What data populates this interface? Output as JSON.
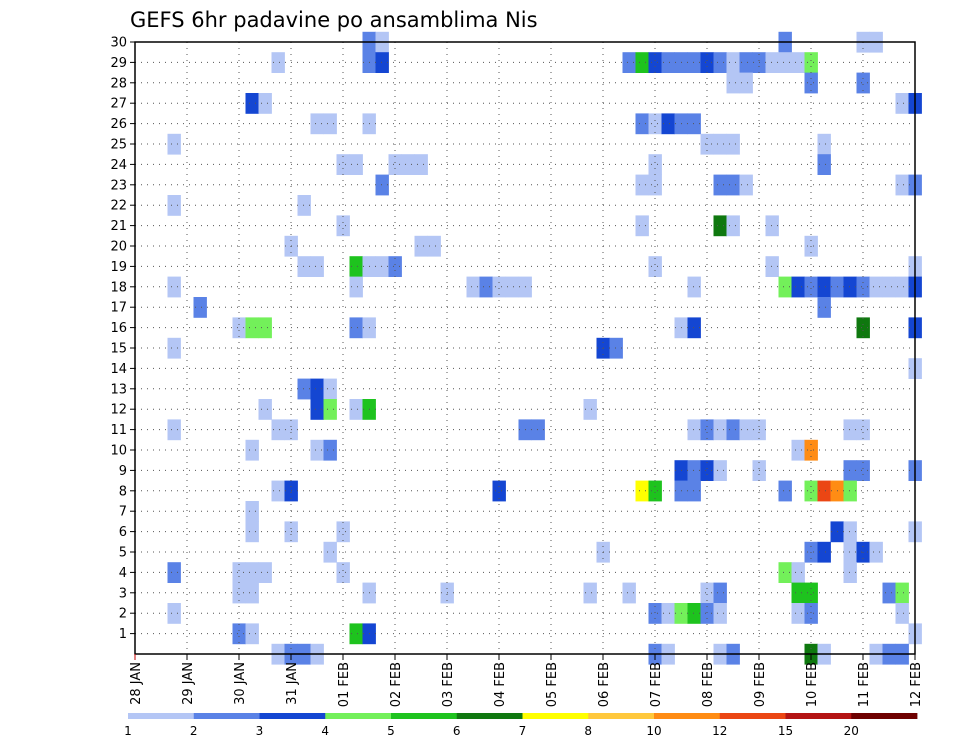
{
  "chart_data": {
    "type": "heatmap",
    "title": "GEFS 6hr padavine po ansamblima Nis",
    "xlabel": "",
    "ylabel": "",
    "x_ticks": [
      "28 JAN",
      "29 JAN",
      "30 JAN",
      "31 JAN",
      "01 FEB",
      "02 FEB",
      "03 FEB",
      "04 FEB",
      "05 FEB",
      "06 FEB",
      "07 FEB",
      "08 FEB",
      "09 FEB",
      "10 FEB",
      "11 FEB",
      "12 FEB"
    ],
    "y_ticks": [
      "1",
      "2",
      "3",
      "4",
      "5",
      "6",
      "7",
      "8",
      "9",
      "10",
      "11",
      "12",
      "13",
      "14",
      "15",
      "16",
      "17",
      "18",
      "19",
      "20",
      "21",
      "22",
      "23",
      "24",
      "25",
      "26",
      "27",
      "28",
      "29",
      "30"
    ],
    "xlim_steps": [
      0,
      60
    ],
    "ylim": [
      0,
      30
    ],
    "x_unit": "6-hour steps from 28 JAN 00Z",
    "colorbar": {
      "tick_labels": [
        "1",
        "2",
        "3",
        "4",
        "5",
        "6",
        "7",
        "8",
        "10",
        "12",
        "15",
        "20"
      ],
      "colors": [
        "#b4c6f5",
        "#5a82e6",
        "#1446d2",
        "#73f05a",
        "#1ec31e",
        "#0f780f",
        "#ffff00",
        "#ffc83c",
        "#ff8c14",
        "#eb4614",
        "#b41414",
        "#6e0000"
      ]
    },
    "cells": [
      [
        18,
        30,
        2
      ],
      [
        19,
        30,
        1
      ],
      [
        50,
        30,
        2
      ],
      [
        56,
        30,
        1
      ],
      [
        57,
        30,
        1
      ],
      [
        11,
        29,
        1
      ],
      [
        18,
        29,
        2
      ],
      [
        19,
        29,
        3
      ],
      [
        38,
        29,
        2
      ],
      [
        39,
        29,
        5
      ],
      [
        40,
        29,
        3
      ],
      [
        41,
        29,
        2
      ],
      [
        42,
        29,
        2
      ],
      [
        43,
        29,
        2
      ],
      [
        44,
        29,
        3
      ],
      [
        45,
        29,
        2
      ],
      [
        46,
        29,
        1
      ],
      [
        47,
        29,
        2
      ],
      [
        48,
        29,
        2
      ],
      [
        49,
        29,
        1
      ],
      [
        50,
        29,
        1
      ],
      [
        51,
        29,
        1
      ],
      [
        52,
        29,
        4
      ],
      [
        46,
        28,
        1
      ],
      [
        47,
        28,
        1
      ],
      [
        52,
        28,
        2
      ],
      [
        56,
        28,
        2
      ],
      [
        9,
        27,
        3
      ],
      [
        10,
        27,
        1
      ],
      [
        59,
        27,
        1
      ],
      [
        60,
        27,
        3
      ],
      [
        14,
        26,
        1
      ],
      [
        15,
        26,
        1
      ],
      [
        18,
        26,
        1
      ],
      [
        39,
        26,
        2
      ],
      [
        40,
        26,
        1
      ],
      [
        41,
        26,
        3
      ],
      [
        42,
        26,
        2
      ],
      [
        43,
        26,
        2
      ],
      [
        3,
        25,
        1
      ],
      [
        44,
        25,
        1
      ],
      [
        45,
        25,
        1
      ],
      [
        46,
        25,
        1
      ],
      [
        53,
        25,
        1
      ],
      [
        16,
        24,
        1
      ],
      [
        17,
        24,
        1
      ],
      [
        20,
        24,
        1
      ],
      [
        21,
        24,
        1
      ],
      [
        22,
        24,
        1
      ],
      [
        40,
        24,
        1
      ],
      [
        53,
        24,
        2
      ],
      [
        19,
        23,
        2
      ],
      [
        39,
        23,
        1
      ],
      [
        40,
        23,
        1
      ],
      [
        45,
        23,
        2
      ],
      [
        46,
        23,
        2
      ],
      [
        47,
        23,
        1
      ],
      [
        59,
        23,
        1
      ],
      [
        60,
        23,
        2
      ],
      [
        3,
        22,
        1
      ],
      [
        13,
        22,
        1
      ],
      [
        16,
        21,
        1
      ],
      [
        39,
        21,
        1
      ],
      [
        45,
        21,
        6
      ],
      [
        46,
        21,
        1
      ],
      [
        49,
        21,
        1
      ],
      [
        12,
        20,
        1
      ],
      [
        22,
        20,
        1
      ],
      [
        23,
        20,
        1
      ],
      [
        52,
        20,
        1
      ],
      [
        13,
        19,
        1
      ],
      [
        14,
        19,
        1
      ],
      [
        17,
        19,
        5
      ],
      [
        18,
        19,
        1
      ],
      [
        19,
        19,
        1
      ],
      [
        20,
        19,
        2
      ],
      [
        40,
        19,
        1
      ],
      [
        49,
        19,
        1
      ],
      [
        60,
        19,
        1
      ],
      [
        3,
        18,
        1
      ],
      [
        17,
        18,
        1
      ],
      [
        26,
        18,
        1
      ],
      [
        27,
        18,
        2
      ],
      [
        28,
        18,
        1
      ],
      [
        29,
        18,
        1
      ],
      [
        30,
        18,
        1
      ],
      [
        43,
        18,
        1
      ],
      [
        50,
        18,
        4
      ],
      [
        51,
        18,
        3
      ],
      [
        52,
        18,
        2
      ],
      [
        53,
        18,
        3
      ],
      [
        54,
        18,
        2
      ],
      [
        55,
        18,
        3
      ],
      [
        56,
        18,
        2
      ],
      [
        57,
        18,
        1
      ],
      [
        58,
        18,
        1
      ],
      [
        59,
        18,
        1
      ],
      [
        60,
        18,
        3
      ],
      [
        5,
        17,
        2
      ],
      [
        53,
        17,
        2
      ],
      [
        8,
        16,
        1
      ],
      [
        9,
        16,
        4
      ],
      [
        10,
        16,
        4
      ],
      [
        17,
        16,
        2
      ],
      [
        18,
        16,
        1
      ],
      [
        42,
        16,
        1
      ],
      [
        43,
        16,
        3
      ],
      [
        56,
        16,
        6
      ],
      [
        60,
        16,
        3
      ],
      [
        3,
        15,
        1
      ],
      [
        36,
        15,
        3
      ],
      [
        37,
        15,
        2
      ],
      [
        60,
        14,
        1
      ],
      [
        13,
        13,
        2
      ],
      [
        14,
        13,
        3
      ],
      [
        15,
        13,
        1
      ],
      [
        10,
        12,
        1
      ],
      [
        14,
        12,
        3
      ],
      [
        15,
        12,
        4
      ],
      [
        17,
        12,
        1
      ],
      [
        18,
        12,
        5
      ],
      [
        35,
        12,
        1
      ],
      [
        3,
        11,
        1
      ],
      [
        11,
        11,
        1
      ],
      [
        12,
        11,
        1
      ],
      [
        30,
        11,
        2
      ],
      [
        31,
        11,
        2
      ],
      [
        43,
        11,
        1
      ],
      [
        44,
        11,
        2
      ],
      [
        45,
        11,
        1
      ],
      [
        46,
        11,
        2
      ],
      [
        47,
        11,
        1
      ],
      [
        48,
        11,
        1
      ],
      [
        55,
        11,
        1
      ],
      [
        56,
        11,
        1
      ],
      [
        9,
        10,
        1
      ],
      [
        14,
        10,
        1
      ],
      [
        15,
        10,
        2
      ],
      [
        51,
        10,
        1
      ],
      [
        52,
        10,
        9
      ],
      [
        42,
        9,
        3
      ],
      [
        43,
        9,
        2
      ],
      [
        44,
        9,
        3
      ],
      [
        45,
        9,
        1
      ],
      [
        48,
        9,
        1
      ],
      [
        55,
        9,
        2
      ],
      [
        56,
        9,
        2
      ],
      [
        60,
        9,
        2
      ],
      [
        11,
        8,
        1
      ],
      [
        12,
        8,
        3
      ],
      [
        28,
        8,
        3
      ],
      [
        39,
        8,
        7
      ],
      [
        40,
        8,
        5
      ],
      [
        42,
        8,
        2
      ],
      [
        43,
        8,
        2
      ],
      [
        50,
        8,
        2
      ],
      [
        52,
        8,
        4
      ],
      [
        53,
        8,
        10
      ],
      [
        54,
        8,
        9
      ],
      [
        55,
        8,
        4
      ],
      [
        9,
        7,
        1
      ],
      [
        9,
        6,
        1
      ],
      [
        12,
        6,
        1
      ],
      [
        16,
        6,
        1
      ],
      [
        54,
        6,
        3
      ],
      [
        55,
        6,
        1
      ],
      [
        60,
        6,
        1
      ],
      [
        15,
        5,
        1
      ],
      [
        36,
        5,
        1
      ],
      [
        52,
        5,
        2
      ],
      [
        53,
        5,
        3
      ],
      [
        55,
        5,
        1
      ],
      [
        56,
        5,
        3
      ],
      [
        57,
        5,
        1
      ],
      [
        3,
        4,
        2
      ],
      [
        8,
        4,
        1
      ],
      [
        9,
        4,
        1
      ],
      [
        10,
        4,
        1
      ],
      [
        16,
        4,
        1
      ],
      [
        50,
        4,
        4
      ],
      [
        51,
        4,
        1
      ],
      [
        55,
        4,
        1
      ],
      [
        8,
        3,
        1
      ],
      [
        9,
        3,
        1
      ],
      [
        18,
        3,
        1
      ],
      [
        24,
        3,
        1
      ],
      [
        35,
        3,
        1
      ],
      [
        38,
        3,
        1
      ],
      [
        44,
        3,
        1
      ],
      [
        45,
        3,
        2
      ],
      [
        51,
        3,
        5
      ],
      [
        52,
        3,
        5
      ],
      [
        58,
        3,
        2
      ],
      [
        59,
        3,
        4
      ],
      [
        3,
        2,
        1
      ],
      [
        40,
        2,
        2
      ],
      [
        41,
        2,
        1
      ],
      [
        42,
        2,
        4
      ],
      [
        43,
        2,
        5
      ],
      [
        44,
        2,
        2
      ],
      [
        45,
        2,
        1
      ],
      [
        51,
        2,
        1
      ],
      [
        52,
        2,
        2
      ],
      [
        59,
        2,
        1
      ],
      [
        8,
        1,
        2
      ],
      [
        9,
        1,
        1
      ],
      [
        17,
        1,
        5
      ],
      [
        18,
        1,
        3
      ],
      [
        60,
        1,
        1
      ],
      [
        11,
        0,
        1
      ],
      [
        12,
        0,
        2
      ],
      [
        13,
        0,
        2
      ],
      [
        14,
        0,
        1
      ],
      [
        40,
        0,
        2
      ],
      [
        41,
        0,
        1
      ],
      [
        45,
        0,
        1
      ],
      [
        46,
        0,
        2
      ],
      [
        52,
        0,
        6
      ],
      [
        53,
        0,
        1
      ],
      [
        57,
        0,
        1
      ],
      [
        58,
        0,
        2
      ],
      [
        59,
        0,
        2
      ]
    ]
  }
}
